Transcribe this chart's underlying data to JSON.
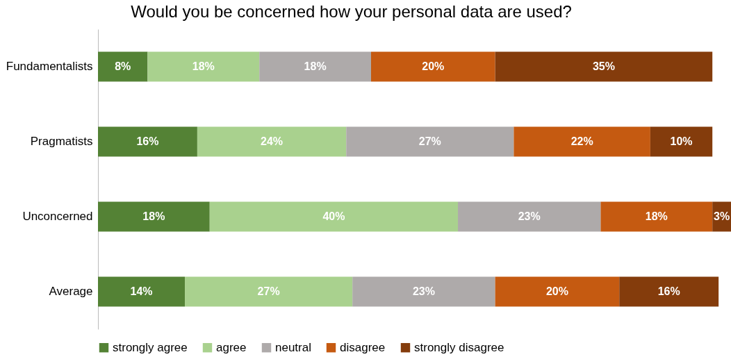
{
  "chart_data": {
    "type": "bar",
    "title": "Would you be concerned how your personal data are used?",
    "orientation": "horizontal",
    "stacked": true,
    "legend": "bottom",
    "tick_labels": "y",
    "categories": [
      "Fundamentalists",
      "Pragmatists",
      "Unconcerned",
      "Average"
    ],
    "series": [
      {
        "name": "strongly agree",
        "color": "#548235",
        "values": [
          8,
          16,
          18,
          14
        ],
        "value_labels": [
          "8%",
          "16%",
          "18%",
          "14%"
        ]
      },
      {
        "name": "agree",
        "color": "#a9d18e",
        "values": [
          18,
          24,
          40,
          27
        ],
        "value_labels": [
          "18%",
          "24%",
          "40%",
          "27%"
        ]
      },
      {
        "name": "neutral",
        "color": "#aeaaaa",
        "values": [
          18,
          27,
          23,
          23
        ],
        "value_labels": [
          "18%",
          "27%",
          "23%",
          "23%"
        ]
      },
      {
        "name": "disagree",
        "color": "#c55a11",
        "values": [
          20,
          22,
          18,
          20
        ],
        "value_labels": [
          "20%",
          "22%",
          "18%",
          "20%"
        ]
      },
      {
        "name": "strongly disagree",
        "color": "#843c0c",
        "values": [
          35,
          10,
          3,
          16
        ],
        "value_labels": [
          "35%",
          "10%",
          "3%",
          "16%"
        ]
      }
    ]
  }
}
